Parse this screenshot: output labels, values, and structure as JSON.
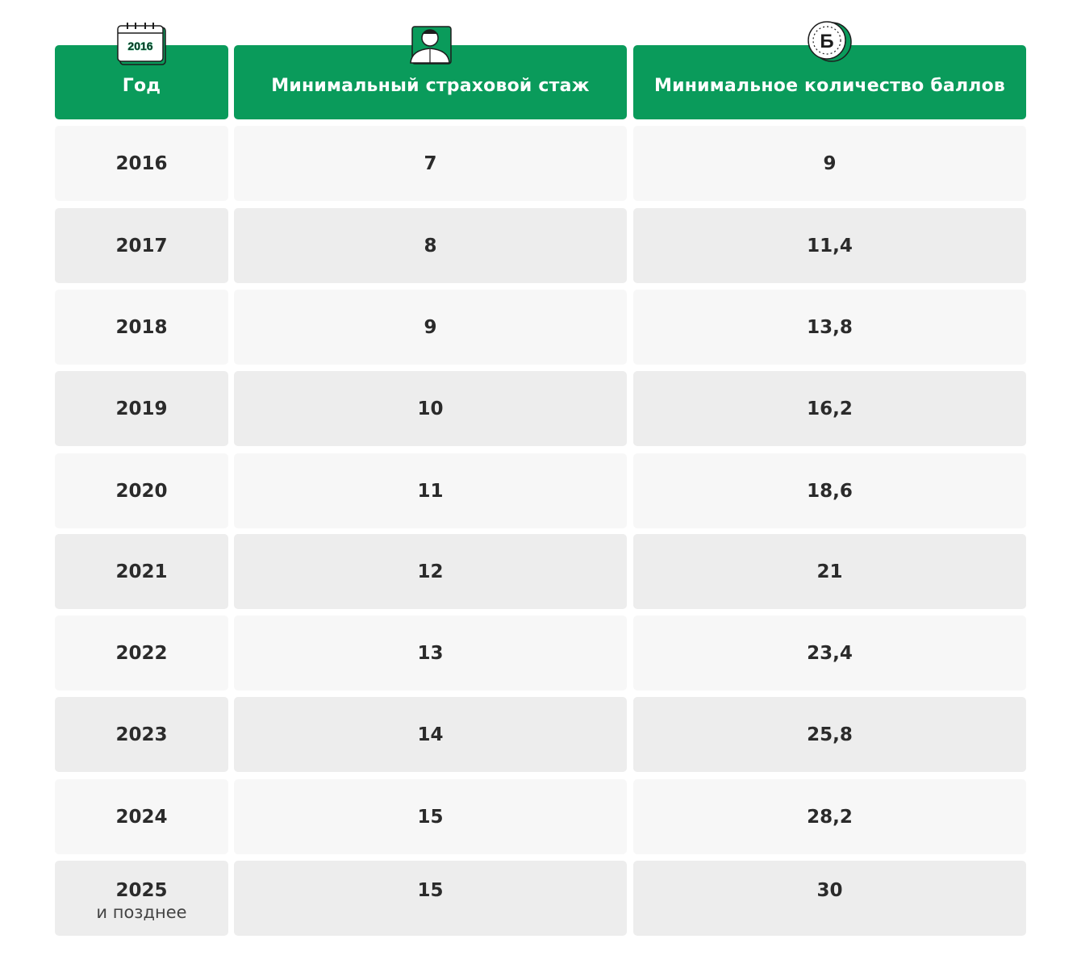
{
  "header": {
    "col_year": "Год",
    "col_experience": "Минимальный страховой стаж",
    "col_points": "Минимальное количество баллов",
    "calendar_icon_text": "2016",
    "coin_icon_text": "Б"
  },
  "rows": [
    {
      "year": "2016",
      "year_note": "",
      "experience": "7",
      "points": "9"
    },
    {
      "year": "2017",
      "year_note": "",
      "experience": "8",
      "points": "11,4"
    },
    {
      "year": "2018",
      "year_note": "",
      "experience": "9",
      "points": "13,8"
    },
    {
      "year": "2019",
      "year_note": "",
      "experience": "10",
      "points": "16,2"
    },
    {
      "year": "2020",
      "year_note": "",
      "experience": "11",
      "points": "18,6"
    },
    {
      "year": "2021",
      "year_note": "",
      "experience": "12",
      "points": "21"
    },
    {
      "year": "2022",
      "year_note": "",
      "experience": "13",
      "points": "23,4"
    },
    {
      "year": "2023",
      "year_note": "",
      "experience": "14",
      "points": "25,8"
    },
    {
      "year": "2024",
      "year_note": "",
      "experience": "15",
      "points": "28,2"
    },
    {
      "year": "2025",
      "year_note": "и позднее",
      "experience": "15",
      "points": "30"
    }
  ],
  "colors": {
    "header_green": "#0a9b5b",
    "row_light": "#f7f7f7",
    "row_dark": "#ededed"
  }
}
